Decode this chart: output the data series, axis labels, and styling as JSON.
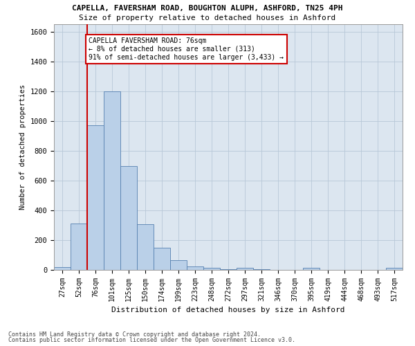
{
  "title": "CAPELLA, FAVERSHAM ROAD, BOUGHTON ALUPH, ASHFORD, TN25 4PH",
  "subtitle": "Size of property relative to detached houses in Ashford",
  "xlabel": "Distribution of detached houses by size in Ashford",
  "ylabel": "Number of detached properties",
  "footnote1": "Contains HM Land Registry data © Crown copyright and database right 2024.",
  "footnote2": "Contains public sector information licensed under the Open Government Licence v3.0.",
  "annotation_line1": "CAPELLA FAVERSHAM ROAD: 76sqm",
  "annotation_line2": "← 8% of detached houses are smaller (313)",
  "annotation_line3": "91% of semi-detached houses are larger (3,433) →",
  "bar_color": "#bad0e8",
  "bar_edge_color": "#5580b0",
  "ref_line_color": "#cc0000",
  "ref_line_x": 1.5,
  "categories": [
    "27sqm",
    "52sqm",
    "76sqm",
    "101sqm",
    "125sqm",
    "150sqm",
    "174sqm",
    "199sqm",
    "223sqm",
    "248sqm",
    "272sqm",
    "297sqm",
    "321sqm",
    "346sqm",
    "370sqm",
    "395sqm",
    "419sqm",
    "444sqm",
    "468sqm",
    "493sqm",
    "517sqm"
  ],
  "values": [
    20,
    310,
    970,
    1200,
    695,
    305,
    150,
    65,
    25,
    15,
    5,
    15,
    3,
    2,
    2,
    15,
    2,
    2,
    2,
    2,
    15
  ],
  "ylim": [
    0,
    1650
  ],
  "yticks": [
    0,
    200,
    400,
    600,
    800,
    1000,
    1200,
    1400,
    1600
  ],
  "background_color": "#ffffff",
  "plot_bg_color": "#dce6f0",
  "grid_color": "#b8c8d8"
}
